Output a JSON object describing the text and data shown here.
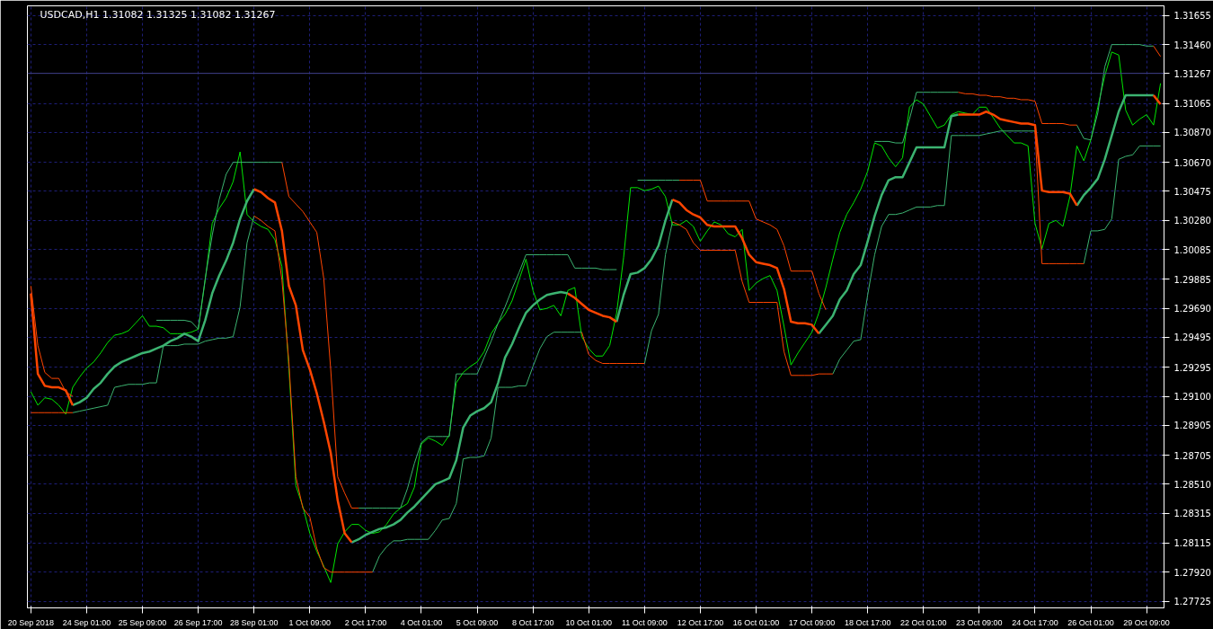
{
  "chart_data": {
    "type": "line",
    "title": "USDCAD,H1  1.31082 1.31325 1.31082 1.31267",
    "categories": [
      "20 Sep 2018",
      null,
      null,
      null,
      null,
      null,
      null,
      null,
      "24 Sep 01:00",
      null,
      null,
      null,
      null,
      null,
      null,
      null,
      "25 Sep 09:00",
      null,
      null,
      null,
      null,
      null,
      null,
      null,
      "26 Sep 17:00",
      null,
      null,
      null,
      null,
      null,
      null,
      null,
      "28 Sep 01:00",
      null,
      null,
      null,
      null,
      null,
      null,
      null,
      "1 Oct 09:00",
      null,
      null,
      null,
      null,
      null,
      null,
      null,
      "2 Oct 17:00",
      null,
      null,
      null,
      null,
      null,
      null,
      null,
      "4 Oct 01:00",
      null,
      null,
      null,
      null,
      null,
      null,
      null,
      "5 Oct 09:00",
      null,
      null,
      null,
      null,
      null,
      null,
      null,
      "8 Oct 17:00",
      null,
      null,
      null,
      null,
      null,
      null,
      null,
      "10 Oct 01:00",
      null,
      null,
      null,
      null,
      null,
      null,
      null,
      "11 Oct 09:00",
      null,
      null,
      null,
      null,
      null,
      null,
      null,
      "12 Oct 17:00",
      null,
      null,
      null,
      null,
      null,
      null,
      null,
      "16 Oct 01:00",
      null,
      null,
      null,
      null,
      null,
      null,
      null,
      "17 Oct 09:00",
      null,
      null,
      null,
      null,
      null,
      null,
      null,
      "18 Oct 17:00",
      null,
      null,
      null,
      null,
      null,
      null,
      null,
      "22 Oct 01:00",
      null,
      null,
      null,
      null,
      null,
      null,
      null,
      "23 Oct 09:00",
      null,
      null,
      null,
      null,
      null,
      null,
      null,
      "24 Oct 17:00",
      null,
      null,
      null,
      null,
      null,
      null,
      null,
      "26 Oct 01:00",
      null,
      null,
      null,
      null,
      null,
      null,
      null,
      "29 Oct 09:00",
      null,
      null
    ],
    "ylim": [
      1.2768,
      1.3172
    ],
    "yticks": [
      {
        "value": 1.31655,
        "label": "1.31655"
      },
      {
        "value": 1.3146,
        "label": "1.31460"
      },
      {
        "value": 1.31065,
        "label": "1.31065"
      },
      {
        "value": 1.3087,
        "label": "1.30870"
      },
      {
        "value": 1.3067,
        "label": "1.30670"
      },
      {
        "value": 1.30475,
        "label": "1.30475"
      },
      {
        "value": 1.3028,
        "label": "1.30280"
      },
      {
        "value": 1.30085,
        "label": "1.30085"
      },
      {
        "value": 1.29885,
        "label": "1.29885"
      },
      {
        "value": 1.2969,
        "label": "1.29690"
      },
      {
        "value": 1.29495,
        "label": "1.29495"
      },
      {
        "value": 1.29295,
        "label": "1.29295"
      },
      {
        "value": 1.291,
        "label": "1.29100"
      },
      {
        "value": 1.28905,
        "label": "1.28905"
      },
      {
        "value": 1.28705,
        "label": "1.28705"
      },
      {
        "value": 1.2851,
        "label": "1.28510"
      },
      {
        "value": 1.28315,
        "label": "1.28315"
      },
      {
        "value": 1.28115,
        "label": "1.28115"
      },
      {
        "value": 1.2792,
        "label": "1.27920"
      },
      {
        "value": 1.27725,
        "label": "1.27725"
      }
    ],
    "grid": true,
    "ref_lines": [
      {
        "axis": "y",
        "value": 1.31267,
        "label": "1.31267",
        "color": "#40408c"
      }
    ],
    "series": [
      {
        "color": "#00e600",
        "values": [
          1.2913,
          1.2904,
          1.2909,
          1.2908,
          1.2904,
          1.2898,
          1.2916,
          1.2923,
          1.2929,
          1.2933,
          1.2939,
          1.2946,
          1.2951,
          1.2952,
          1.2954,
          1.2959,
          1.2964,
          1.2957,
          1.2957,
          1.2956,
          1.2952,
          1.2952,
          1.2952,
          1.2953,
          1.2955,
          1.2988,
          1.3026,
          1.3036,
          1.3043,
          1.3054,
          1.3074,
          1.3032,
          1.3027,
          1.3024,
          1.3022,
          1.3015,
          1.2997,
          1.2929,
          1.285,
          1.2836,
          1.2818,
          1.2806,
          1.2796,
          1.2785,
          1.2811,
          1.2819,
          1.2824,
          1.2824,
          1.282,
          1.2818,
          1.2819,
          1.2824,
          1.2831,
          1.2835,
          1.2838,
          1.2849,
          1.2878,
          1.2882,
          1.288,
          1.2877,
          1.2884,
          1.2919,
          1.2926,
          1.293,
          1.2933,
          1.294,
          1.2952,
          1.2959,
          1.2965,
          1.2974,
          1.2988,
          1.3002,
          1.2981,
          1.2968,
          1.2969,
          1.2971,
          1.2964,
          1.2981,
          1.2983,
          1.295,
          1.2942,
          1.2937,
          1.2937,
          1.2944,
          1.2966,
          1.3003,
          1.305,
          1.305,
          1.3048,
          1.3049,
          1.3051,
          1.3044,
          1.3025,
          1.3025,
          1.3028,
          1.3024,
          1.3014,
          1.3021,
          1.3027,
          1.3025,
          1.3019,
          1.3017,
          1.3022,
          1.2981,
          1.2986,
          1.2989,
          1.2991,
          1.2981,
          1.2957,
          1.2931,
          1.2939,
          1.2946,
          1.2953,
          1.2966,
          1.2983,
          1.3002,
          1.302,
          1.3032,
          1.304,
          1.3049,
          1.3061,
          1.308,
          1.3078,
          1.307,
          1.3064,
          1.307,
          1.3104,
          1.3109,
          1.3106,
          1.3098,
          1.309,
          1.3092,
          1.3099,
          1.3101,
          1.31,
          1.3099,
          1.3104,
          1.3104,
          1.3097,
          1.309,
          1.3085,
          1.308,
          1.308,
          1.3078,
          1.3026,
          1.3009,
          1.3026,
          1.3028,
          1.3024,
          1.3044,
          1.3078,
          1.3068,
          1.3082,
          1.3104,
          1.3125,
          1.3141,
          1.3139,
          1.3102,
          1.3092,
          1.3096,
          1.3099,
          1.3092,
          1.312
        ]
      },
      {
        "color": "#3cb371",
        "values": [
          null,
          null,
          null,
          null,
          null,
          null,
          null,
          null,
          null,
          null,
          null,
          null,
          null,
          null,
          null,
          null,
          null,
          null,
          1.2961,
          1.2961,
          1.2961,
          1.2961,
          1.2961,
          1.296,
          1.2955,
          1.2989,
          1.3018,
          1.3042,
          1.3059,
          1.3067,
          1.3067,
          1.3067,
          1.3067,
          1.3067,
          1.3067,
          1.3067,
          1.3067,
          null,
          null,
          null,
          null,
          null,
          null,
          null,
          null,
          null,
          null,
          1.2835,
          1.2835,
          1.2835,
          1.2835,
          1.2835,
          1.2835,
          1.2835,
          1.2848,
          1.2865,
          1.2879,
          1.2883,
          1.2883,
          1.2883,
          1.2883,
          1.2925,
          1.2925,
          1.2925,
          1.2925,
          1.2936,
          1.2947,
          1.2959,
          1.297,
          1.2982,
          1.2993,
          1.3005,
          1.3005,
          1.3005,
          1.3005,
          1.3005,
          1.3005,
          1.3005,
          1.2996,
          1.2996,
          1.2996,
          1.2996,
          1.2995,
          1.2995,
          1.2995,
          null,
          null,
          1.3055,
          1.3055,
          1.3055,
          1.3055,
          1.3055,
          1.3055,
          1.3055,
          null,
          null,
          null,
          null,
          null,
          null,
          null,
          null,
          null,
          null,
          null,
          null,
          null,
          null,
          null,
          null,
          null,
          null,
          null,
          null,
          null,
          null,
          null,
          null,
          null,
          null,
          null,
          1.3081,
          1.3081,
          1.3081,
          1.308,
          1.308,
          1.3096,
          1.3114,
          1.3114,
          1.3114,
          1.3114,
          1.3114,
          1.3114,
          1.3114,
          null,
          null,
          null,
          null,
          null,
          null,
          null,
          null,
          null,
          null,
          null,
          null,
          null,
          null,
          null,
          null,
          1.3092,
          1.3083,
          1.3082,
          1.31,
          1.3131,
          1.3146,
          1.3146,
          1.3146,
          1.3146,
          1.3146,
          1.3145,
          1.3145,
          null
        ]
      },
      {
        "color": "#3cb371",
        "values": [
          null,
          null,
          null,
          null,
          null,
          null,
          1.2899,
          1.29,
          1.2901,
          1.2902,
          1.2903,
          1.2904,
          1.2916,
          1.2917,
          1.2918,
          1.2918,
          1.2918,
          1.2919,
          1.2919,
          1.2944,
          1.2944,
          1.2944,
          1.2945,
          1.2945,
          1.2945,
          1.2947,
          1.2948,
          1.2949,
          1.2949,
          1.295,
          1.297,
          1.3013,
          1.3031,
          null,
          null,
          null,
          null,
          null,
          null,
          null,
          null,
          null,
          null,
          null,
          null,
          null,
          null,
          null,
          null,
          1.2792,
          1.2803,
          1.2809,
          1.2813,
          1.2813,
          1.2814,
          1.2814,
          1.2814,
          1.2814,
          1.282,
          1.2827,
          1.2828,
          1.2838,
          1.2868,
          1.2869,
          1.2869,
          1.287,
          1.2882,
          1.2916,
          1.2916,
          1.2916,
          1.2917,
          1.2917,
          1.293,
          1.2942,
          1.295,
          1.2953,
          1.2953,
          1.2953,
          1.2953,
          1.2953,
          null,
          null,
          null,
          null,
          null,
          null,
          null,
          null,
          1.2932,
          1.2954,
          1.2965,
          1.3005,
          1.3027,
          null,
          null,
          null,
          null,
          null,
          null,
          null,
          null,
          null,
          null,
          null,
          null,
          null,
          null,
          null,
          null,
          null,
          null,
          null,
          null,
          null,
          null,
          1.2925,
          1.2935,
          1.2941,
          1.2947,
          1.2948,
          1.2978,
          1.3005,
          1.3024,
          1.3032,
          1.3032,
          1.3033,
          1.3035,
          1.3037,
          1.3037,
          1.3037,
          1.3038,
          1.3038,
          1.3085,
          1.3085,
          1.3085,
          1.3085,
          1.3085,
          1.3086,
          1.3087,
          1.3088,
          1.3088,
          1.3088,
          1.3088,
          1.3088,
          1.3088,
          null,
          null,
          null,
          null,
          null,
          null,
          1.2999,
          1.3021,
          1.3021,
          1.3022,
          1.3029,
          1.3069,
          1.3071,
          1.3072,
          1.3078,
          1.3078,
          1.3078,
          1.3078
        ]
      },
      {
        "color": "#ff4500",
        "values": [
          1.2984,
          1.2944,
          1.2926,
          1.2922,
          1.2922,
          1.2913,
          1.291,
          null,
          null,
          null,
          null,
          null,
          null,
          null,
          null,
          null,
          null,
          null,
          null,
          null,
          null,
          null,
          null,
          null,
          null,
          null,
          null,
          null,
          null,
          null,
          null,
          null,
          null,
          null,
          null,
          null,
          1.3067,
          1.3044,
          1.3039,
          1.3034,
          1.3027,
          1.302,
          1.2989,
          1.2928,
          1.2856,
          1.2845,
          1.2835,
          1.2835,
          null,
          null,
          null,
          null,
          null,
          null,
          null,
          null,
          null,
          null,
          null,
          null,
          null,
          null,
          null,
          null,
          null,
          null,
          null,
          null,
          null,
          null,
          null,
          null,
          null,
          null,
          null,
          null,
          null,
          null,
          null,
          null,
          null,
          null,
          null,
          null,
          null,
          null,
          null,
          null,
          null,
          null,
          null,
          null,
          null,
          1.3055,
          1.3055,
          1.3055,
          1.3055,
          1.3041,
          1.3041,
          1.3041,
          1.3041,
          1.3041,
          1.3041,
          1.3041,
          1.3029,
          1.3027,
          1.3025,
          1.3022,
          1.3011,
          1.2994,
          1.2994,
          1.2994,
          1.2994,
          1.2979,
          1.2968,
          null,
          null,
          null,
          null,
          null,
          null,
          null,
          null,
          null,
          null,
          null,
          null,
          null,
          null,
          null,
          null,
          null,
          null,
          1.3114,
          1.3113,
          1.3113,
          1.3112,
          1.3112,
          1.3111,
          1.3111,
          1.311,
          1.311,
          1.3109,
          1.3109,
          1.3108,
          1.3093,
          1.3093,
          1.3093,
          1.3093,
          1.3092,
          1.3092,
          null,
          null,
          null,
          null,
          null,
          null,
          null,
          null,
          null,
          null,
          1.3145,
          1.3138
        ]
      },
      {
        "color": "#ff4500",
        "values": [
          1.2899,
          1.2899,
          1.2899,
          1.2899,
          1.2899,
          1.2899,
          1.2899,
          null,
          null,
          null,
          null,
          null,
          null,
          null,
          null,
          null,
          null,
          null,
          null,
          null,
          null,
          null,
          null,
          null,
          null,
          null,
          null,
          null,
          null,
          null,
          null,
          null,
          1.3031,
          1.3028,
          1.3024,
          1.3021,
          1.2988,
          1.2933,
          1.2856,
          1.2835,
          1.2829,
          1.2808,
          1.2795,
          1.2792,
          1.2792,
          1.2792,
          1.2792,
          1.2792,
          1.2792,
          1.2792,
          null,
          null,
          null,
          null,
          null,
          null,
          null,
          null,
          null,
          null,
          null,
          null,
          null,
          null,
          null,
          null,
          null,
          null,
          null,
          null,
          null,
          null,
          null,
          null,
          null,
          null,
          null,
          null,
          null,
          1.2953,
          1.2938,
          1.2934,
          1.2932,
          1.2932,
          1.2932,
          1.2932,
          1.2932,
          1.2932,
          1.2932,
          null,
          null,
          null,
          1.3027,
          1.3025,
          1.3022,
          1.3013,
          1.3008,
          1.3008,
          1.3008,
          1.3008,
          1.3008,
          1.3008,
          1.2987,
          1.2973,
          1.2973,
          1.2973,
          1.2973,
          1.2973,
          1.294,
          1.2924,
          1.2924,
          1.2924,
          1.2924,
          1.2925,
          1.2925,
          1.2925,
          null,
          null,
          null,
          null,
          null,
          null,
          null,
          null,
          null,
          null,
          null,
          null,
          null,
          null,
          null,
          null,
          null,
          null,
          null,
          null,
          null,
          null,
          null,
          null,
          null,
          null,
          null,
          null,
          1.3088,
          1.2999,
          1.2999,
          1.2999,
          1.2999,
          1.2999,
          1.2999,
          1.2999,
          null,
          null,
          null,
          null,
          null,
          null,
          null,
          null,
          null,
          null,
          null
        ]
      },
      {
        "color": "#3cb371",
        "values": [
          null,
          null,
          null,
          null,
          null,
          null,
          1.2904,
          1.2906,
          1.2909,
          1.2915,
          1.2919,
          1.2925,
          1.293,
          1.2933,
          1.2935,
          1.2937,
          1.2939,
          1.294,
          1.2942,
          1.2944,
          1.2947,
          1.2949,
          1.2952,
          1.295,
          1.2947,
          1.2961,
          1.2979,
          1.2991,
          1.3001,
          1.3013,
          1.3029,
          1.3041,
          1.3049,
          null,
          null,
          null,
          null,
          null,
          null,
          null,
          null,
          null,
          null,
          null,
          null,
          null,
          1.2812,
          1.2814,
          1.2817,
          1.2819,
          1.2821,
          1.2822,
          1.2824,
          1.2827,
          1.2832,
          1.2836,
          1.2841,
          1.2846,
          1.2851,
          1.2853,
          1.2855,
          1.2867,
          1.2889,
          1.2897,
          1.29,
          1.2902,
          1.2906,
          1.2919,
          1.2936,
          1.2945,
          1.2956,
          1.2966,
          1.2971,
          1.2975,
          1.2978,
          1.2979,
          1.298,
          1.2979,
          null,
          null,
          null,
          null,
          null,
          null,
          1.296,
          1.2978,
          1.2992,
          1.2993,
          1.2996,
          1.3002,
          1.3011,
          1.3028,
          1.3042,
          null,
          null,
          null,
          null,
          null,
          null,
          null,
          null,
          null,
          null,
          null,
          null,
          null,
          null,
          null,
          null,
          null,
          null,
          null,
          null,
          1.2952,
          1.2958,
          1.2964,
          1.2975,
          1.2981,
          1.2992,
          1.2998,
          1.3014,
          1.3031,
          1.3045,
          1.3055,
          1.3057,
          1.3057,
          1.3067,
          1.3077,
          1.3077,
          1.3077,
          1.3077,
          1.3077,
          1.3098,
          1.3099,
          null,
          null,
          null,
          null,
          null,
          null,
          null,
          null,
          null,
          null,
          null,
          null,
          null,
          null,
          null,
          null,
          1.3038,
          1.3045,
          1.305,
          1.3056,
          1.3069,
          1.3085,
          1.3101,
          1.3112,
          1.3112,
          1.3112,
          1.3112,
          1.3112,
          null
        ]
      },
      {
        "color": "#ff4500",
        "values": [
          1.2979,
          1.2925,
          1.2917,
          1.2916,
          1.2916,
          1.2914,
          1.2904,
          null,
          null,
          null,
          null,
          null,
          null,
          null,
          null,
          null,
          null,
          null,
          null,
          null,
          null,
          null,
          null,
          null,
          null,
          null,
          null,
          null,
          null,
          null,
          null,
          null,
          1.3049,
          1.3047,
          1.3043,
          1.304,
          1.3021,
          1.2984,
          1.2971,
          1.2941,
          1.2928,
          1.2912,
          1.2893,
          1.2872,
          1.284,
          1.2818,
          1.2812,
          null,
          null,
          null,
          null,
          null,
          null,
          null,
          null,
          null,
          null,
          null,
          null,
          null,
          null,
          null,
          null,
          null,
          null,
          null,
          null,
          null,
          null,
          null,
          null,
          null,
          null,
          null,
          null,
          null,
          null,
          1.2979,
          1.2976,
          1.2972,
          1.2968,
          1.2966,
          1.2964,
          1.2963,
          1.296,
          null,
          null,
          null,
          null,
          null,
          null,
          null,
          1.3042,
          1.304,
          1.3035,
          1.3032,
          1.303,
          1.3025,
          1.3024,
          1.3024,
          1.3024,
          1.3024,
          1.3016,
          1.3005,
          1.3,
          1.2999,
          1.2998,
          1.2996,
          1.2982,
          1.296,
          1.2959,
          1.2959,
          1.2958,
          1.2952,
          null,
          null,
          null,
          null,
          null,
          null,
          null,
          null,
          null,
          null,
          null,
          null,
          null,
          null,
          null,
          null,
          null,
          null,
          null,
          1.3099,
          1.3099,
          1.3099,
          1.3099,
          1.3101,
          1.3099,
          1.3096,
          1.3095,
          1.3094,
          1.3093,
          1.3093,
          1.3092,
          1.3048,
          1.3047,
          1.3047,
          1.3047,
          1.3046,
          1.3038,
          null,
          null,
          null,
          null,
          null,
          null,
          null,
          null,
          null,
          null,
          1.3112,
          1.3106
        ]
      }
    ]
  }
}
